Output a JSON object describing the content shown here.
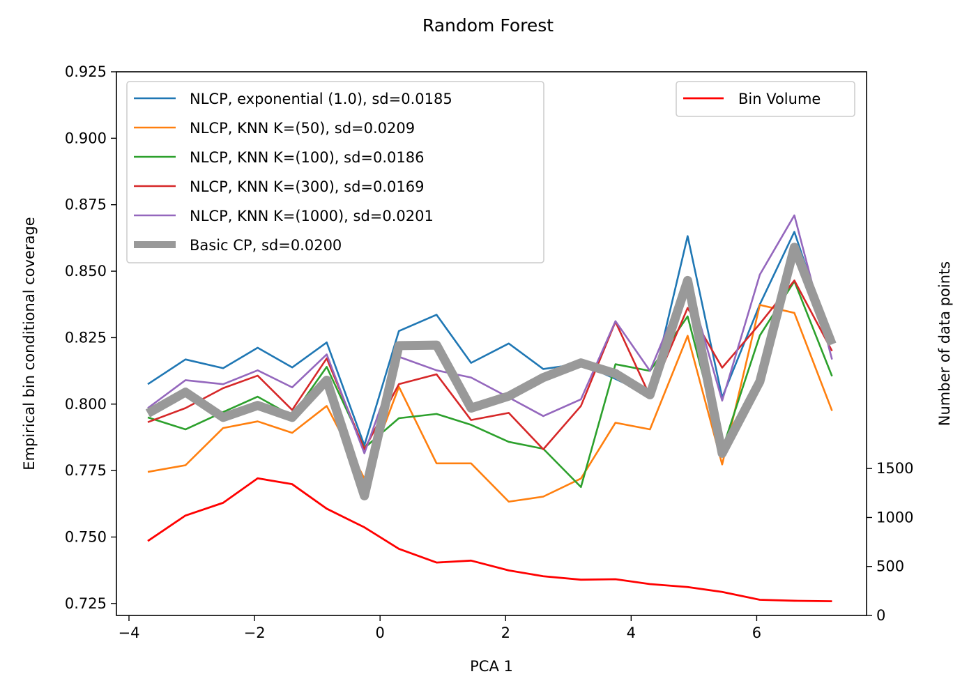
{
  "chart_data": {
    "type": "line",
    "title": "Random Forest",
    "xlabel": "PCA 1",
    "ylabel": "Empirical bin conditional coverage",
    "ylabel_right": "Number of data points",
    "xlim": [
      -4.2,
      7.75
    ],
    "ylim": [
      0.7205,
      0.925
    ],
    "ylim_right": [
      0,
      5550
    ],
    "x_ticks": [
      -4,
      -2,
      0,
      2,
      4,
      6
    ],
    "x_tick_labels": [
      "−4",
      "−2",
      "0",
      "2",
      "4",
      "6"
    ],
    "y_ticks": [
      0.725,
      0.75,
      0.775,
      0.8,
      0.825,
      0.85,
      0.875,
      0.9,
      0.925
    ],
    "y_tick_labels": [
      "0.725",
      "0.750",
      "0.775",
      "0.800",
      "0.825",
      "0.850",
      "0.875",
      "0.900",
      "0.925"
    ],
    "y_right_ticks": [
      0,
      500,
      1000,
      1500
    ],
    "y_right_tick_labels": [
      "0",
      "500",
      "1000",
      "1500"
    ],
    "grid": false,
    "legend_main_placement": "top-left",
    "legend_right_placement": "top-right",
    "x": [
      -3.7,
      -3.1,
      -2.5,
      -1.95,
      -1.4,
      -0.85,
      -0.25,
      0.3,
      0.9,
      1.45,
      2.05,
      2.6,
      3.2,
      3.75,
      4.3,
      4.9,
      5.45,
      6.05,
      6.6,
      7.2
    ],
    "series": [
      {
        "name": "NLCP, exponential (1.0), sd=0.0185",
        "color": "#1f77b4",
        "width": 2.6,
        "opacity": 1,
        "values": [
          0.8075,
          0.8168,
          0.8135,
          0.8212,
          0.8138,
          0.8232,
          0.7845,
          0.8275,
          0.8336,
          0.8155,
          0.8228,
          0.8132,
          0.8152,
          0.8095,
          0.8032,
          0.8632,
          0.8025,
          0.8375,
          0.8648,
          0.8225
        ]
      },
      {
        "name": "NLCP, KNN K=(50), sd=0.0209",
        "color": "#ff7f0e",
        "width": 2.6,
        "opacity": 1,
        "values": [
          0.7745,
          0.777,
          0.791,
          0.7935,
          0.7892,
          0.7993,
          0.772,
          0.8065,
          0.7777,
          0.7777,
          0.7633,
          0.7652,
          0.772,
          0.793,
          0.7905,
          0.8257,
          0.7773,
          0.8373,
          0.8343,
          0.7975
        ]
      },
      {
        "name": "NLCP, KNN K=(100), sd=0.0186",
        "color": "#2ca02c",
        "width": 2.6,
        "opacity": 1,
        "values": [
          0.795,
          0.7905,
          0.797,
          0.8028,
          0.7955,
          0.814,
          0.7835,
          0.7947,
          0.7963,
          0.7922,
          0.7858,
          0.7832,
          0.7688,
          0.815,
          0.8125,
          0.833,
          0.7828,
          0.8258,
          0.8462,
          0.8105
        ]
      },
      {
        "name": "NLCP, KNN K=(300), sd=0.0169",
        "color": "#d62728",
        "width": 2.6,
        "opacity": 1,
        "values": [
          0.7932,
          0.7985,
          0.806,
          0.8107,
          0.7978,
          0.8172,
          0.783,
          0.8075,
          0.8112,
          0.794,
          0.7967,
          0.783,
          0.7993,
          0.831,
          0.803,
          0.8362,
          0.8137,
          0.8302,
          0.8465,
          0.82
        ]
      },
      {
        "name": "NLCP, KNN K=(1000), sd=0.0201",
        "color": "#9467bd",
        "width": 2.6,
        "opacity": 1,
        "values": [
          0.7985,
          0.809,
          0.8075,
          0.8127,
          0.8063,
          0.8187,
          0.7815,
          0.8178,
          0.8127,
          0.81,
          0.8025,
          0.7955,
          0.8018,
          0.8312,
          0.8125,
          0.8465,
          0.8013,
          0.8487,
          0.871,
          0.8168
        ]
      },
      {
        "name": "Basic CP, sd=0.0200",
        "color": "#999999",
        "width": 13,
        "opacity": 1,
        "values": [
          0.7965,
          0.8045,
          0.795,
          0.7995,
          0.795,
          0.809,
          0.7655,
          0.822,
          0.8222,
          0.7985,
          0.803,
          0.81,
          0.8155,
          0.8115,
          0.8035,
          0.8465,
          0.7815,
          0.8085,
          0.859,
          0.8225
        ]
      }
    ],
    "volume_series": {
      "name": "Bin Volume",
      "color": "#ff0000",
      "width": 2.8,
      "values": [
        760,
        1020,
        1150,
        1400,
        1340,
        1090,
        900,
        680,
        540,
        560,
        460,
        400,
        365,
        370,
        320,
        290,
        240,
        160,
        150,
        145
      ]
    }
  }
}
